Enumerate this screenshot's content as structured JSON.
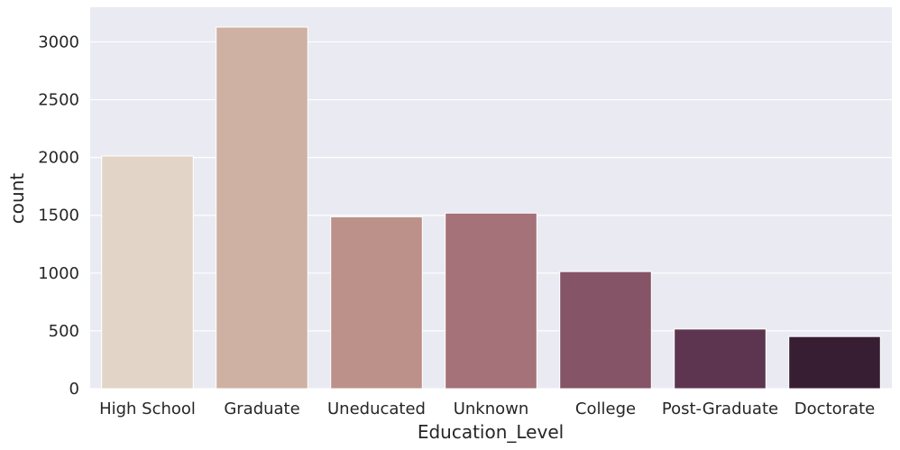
{
  "chart_data": {
    "type": "bar",
    "xlabel": "Education_Level",
    "ylabel": "count",
    "categories": [
      "High School",
      "Graduate",
      "Uneducated",
      "Unknown",
      "College",
      "Post-Graduate",
      "Doctorate"
    ],
    "values": [
      2013,
      3128,
      1487,
      1519,
      1013,
      516,
      451
    ],
    "ylim": [
      0,
      3300
    ],
    "yticks": [
      0,
      500,
      1000,
      1500,
      2000,
      2500,
      3000
    ],
    "colors": [
      "#e2d5c7",
      "#cfb1a3",
      "#bc918a",
      "#a47278",
      "#855466",
      "#5e3550",
      "#371e32"
    ],
    "background": "#eaeaf2",
    "grid": true,
    "legend": "none"
  }
}
